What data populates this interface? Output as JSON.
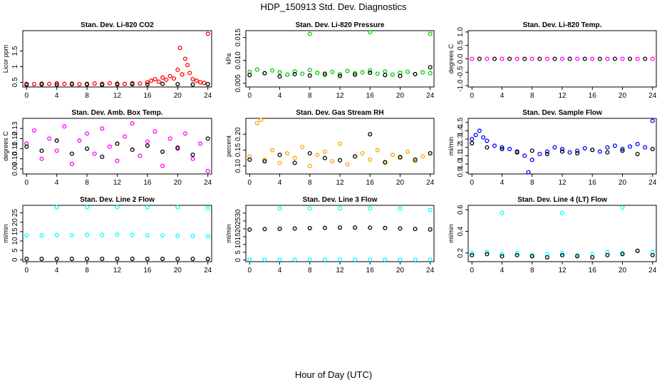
{
  "title": "HDP_150913  Std. Dev. Diagnostics",
  "xlabel": "Hour of Day (UTC)",
  "chart_data": [
    {
      "type": "scatter",
      "title": "Stan. Dev. Li-820 CO2",
      "ylabel": "Licor ppm",
      "xlim": [
        -0.5,
        24.5
      ],
      "ylim": [
        0.35,
        2.15
      ],
      "xticks": [
        0,
        4,
        8,
        12,
        16,
        20,
        24
      ],
      "yticks": [
        0.5,
        1.0,
        1.5
      ],
      "yticklabels": [
        "0.5",
        "1",
        "1.5"
      ],
      "series": [
        {
          "color": "#ff0000",
          "x": [
            0,
            1,
            2,
            3,
            4,
            5,
            6,
            7,
            8,
            9,
            10,
            11,
            12,
            13,
            14,
            15,
            16,
            16.5,
            17,
            17.5,
            18,
            18.5,
            19,
            19.5,
            20,
            20.3,
            20.6,
            21,
            21.3,
            21.6,
            22,
            22.5,
            23,
            23.5,
            24
          ],
          "y": [
            0.45,
            0.44,
            0.46,
            0.45,
            0.47,
            0.45,
            0.46,
            0.44,
            0.45,
            0.46,
            0.45,
            0.47,
            0.46,
            0.45,
            0.47,
            0.46,
            0.5,
            0.55,
            0.6,
            0.52,
            0.65,
            0.58,
            0.7,
            0.62,
            0.9,
            1.6,
            0.75,
            1.25,
            1.05,
            0.8,
            0.6,
            0.55,
            0.5,
            0.48,
            2.05
          ]
        },
        {
          "color": "#000000",
          "x": [
            0,
            2,
            4,
            6,
            8,
            10,
            12,
            14,
            16,
            18,
            20,
            22,
            24
          ],
          "y": [
            0.42,
            0.43,
            0.42,
            0.44,
            0.43,
            0.42,
            0.43,
            0.44,
            0.43,
            0.45,
            0.44,
            0.43,
            0.44
          ]
        }
      ]
    },
    {
      "type": "scatter",
      "title": "Stan. Dev. Li-820 Pressure",
      "ylabel": "kPa",
      "xlim": [
        -0.5,
        24.5
      ],
      "ylim": [
        0.0042,
        0.0165
      ],
      "xticks": [
        0,
        4,
        8,
        12,
        16,
        20,
        24
      ],
      "yticks": [
        0.005,
        0.01,
        0.015
      ],
      "yticklabels": [
        "0.005",
        "0.010",
        "0.015"
      ],
      "series": [
        {
          "color": "#00cc00",
          "x": [
            0,
            1,
            2,
            3,
            4,
            5,
            6,
            7,
            8,
            9,
            10,
            11,
            12,
            13,
            14,
            15,
            16,
            17,
            18,
            19,
            20,
            21,
            22,
            23,
            24,
            8,
            16,
            24
          ],
          "y": [
            0.0075,
            0.008,
            0.0072,
            0.0078,
            0.0074,
            0.0069,
            0.0076,
            0.0071,
            0.0079,
            0.0073,
            0.0068,
            0.0075,
            0.007,
            0.0077,
            0.0072,
            0.0074,
            0.0078,
            0.0071,
            0.0076,
            0.0069,
            0.0073,
            0.0075,
            0.007,
            0.0074,
            0.0072,
            0.0158,
            0.0162,
            0.0158
          ]
        },
        {
          "color": "#000000",
          "x": [
            0,
            2,
            4,
            6,
            8,
            10,
            12,
            14,
            16,
            18,
            20,
            22,
            24
          ],
          "y": [
            0.0068,
            0.0072,
            0.0065,
            0.007,
            0.0067,
            0.0071,
            0.0066,
            0.0069,
            0.0073,
            0.0068,
            0.0066,
            0.007,
            0.0085
          ]
        }
      ]
    },
    {
      "type": "scatter",
      "title": "Stan. Dev. Li-820 Temp.",
      "ylabel": "degrees C",
      "xlim": [
        -0.5,
        24.5
      ],
      "ylim": [
        -1.05,
        1.05
      ],
      "xticks": [
        0,
        4,
        8,
        12,
        16,
        20,
        24
      ],
      "yticks": [
        -1.0,
        -0.5,
        0.0,
        0.5,
        1.0
      ],
      "yticklabels": [
        "-1.0",
        "-0.5",
        "0.0",
        "0.5",
        "1.0"
      ],
      "series": [
        {
          "color": "#ff00ff",
          "x": [
            0,
            2,
            4,
            6,
            8,
            10,
            12,
            14,
            16,
            18,
            20,
            22,
            24
          ],
          "y": [
            0,
            0,
            0,
            0,
            0,
            0,
            0,
            0,
            0,
            0,
            0,
            0,
            0
          ]
        },
        {
          "color": "#000000",
          "x": [
            1,
            3,
            5,
            7,
            9,
            11,
            13,
            15,
            17,
            19,
            21,
            23
          ],
          "y": [
            0,
            0,
            0,
            0,
            0,
            0,
            0,
            0,
            0,
            0,
            0,
            0
          ]
        }
      ]
    },
    {
      "type": "scatter",
      "title": "Stan. Dev. Amb. Box Temp.",
      "ylabel": "degrees C",
      "xlim": [
        -0.5,
        24.5
      ],
      "ylim": [
        0.085,
        0.14
      ],
      "xticks": [
        0,
        4,
        8,
        12,
        16,
        20,
        24
      ],
      "yticks": [
        0.09,
        0.1,
        0.11,
        0.12,
        0.13
      ],
      "yticklabels": [
        "0.09",
        "0.10",
        "0.11",
        "0.12",
        "0.13"
      ],
      "series": [
        {
          "color": "#ff00ff",
          "x": [
            0,
            1,
            2,
            3,
            4,
            5,
            6,
            7,
            8,
            9,
            10,
            11,
            12,
            13,
            14,
            15,
            16,
            17,
            18,
            19,
            20,
            21,
            22,
            23,
            24
          ],
          "y": [
            0.115,
            0.128,
            0.1,
            0.12,
            0.108,
            0.132,
            0.095,
            0.118,
            0.125,
            0.105,
            0.13,
            0.112,
            0.098,
            0.122,
            0.135,
            0.103,
            0.117,
            0.127,
            0.093,
            0.12,
            0.11,
            0.125,
            0.1,
            0.115,
            0.088
          ]
        },
        {
          "color": "#000000",
          "x": [
            0,
            2,
            4,
            6,
            8,
            10,
            12,
            14,
            16,
            18,
            20,
            22,
            24
          ],
          "y": [
            0.112,
            0.108,
            0.118,
            0.105,
            0.11,
            0.102,
            0.115,
            0.109,
            0.113,
            0.107,
            0.111,
            0.104,
            0.12
          ]
        }
      ]
    },
    {
      "type": "scatter",
      "title": "Stan. Dev. Gas Stream RH",
      "ylabel": "percent",
      "xlim": [
        -0.5,
        24.5
      ],
      "ylim": [
        0.075,
        0.25
      ],
      "xticks": [
        0,
        4,
        8,
        12,
        16,
        20,
        24
      ],
      "yticks": [
        0.1,
        0.15,
        0.2
      ],
      "yticklabels": [
        "0.10",
        "0.15",
        "0.20"
      ],
      "series": [
        {
          "color": "#ffa500",
          "x": [
            0,
            1,
            1.5,
            2,
            3,
            4,
            5,
            6,
            7,
            8,
            9,
            10,
            11,
            12,
            13,
            14,
            15,
            16,
            17,
            18,
            19,
            20,
            21,
            22,
            23,
            24
          ],
          "y": [
            0.13,
            0.235,
            0.245,
            0.12,
            0.15,
            0.11,
            0.14,
            0.125,
            0.16,
            0.1,
            0.135,
            0.145,
            0.115,
            0.17,
            0.105,
            0.13,
            0.14,
            0.12,
            0.15,
            0.11,
            0.135,
            0.125,
            0.145,
            0.115,
            0.13,
            0.14
          ]
        },
        {
          "color": "#000000",
          "x": [
            0,
            2,
            4,
            6,
            8,
            10,
            12,
            14,
            16,
            18,
            20,
            22,
            24
          ],
          "y": [
            0.12,
            0.115,
            0.135,
            0.11,
            0.14,
            0.125,
            0.118,
            0.13,
            0.2,
            0.112,
            0.128,
            0.12,
            0.14
          ]
        }
      ]
    },
    {
      "type": "scatter",
      "title": "Stan. Dev. Sample Flow",
      "ylabel": "ml/min",
      "xlim": [
        -0.5,
        24.5
      ],
      "ylim": [
        0.88,
        1.55
      ],
      "xticks": [
        0,
        4,
        8,
        12,
        16,
        20,
        24
      ],
      "yticks": [
        0.9,
        1.0,
        1.1,
        1.2,
        1.3,
        1.4,
        1.5
      ],
      "yticklabels": [
        "0.9",
        "1.0",
        "1.1",
        "1.2",
        "1.3",
        "1.4",
        "1.5"
      ],
      "series": [
        {
          "color": "#0000ff",
          "x": [
            0,
            0.5,
            1,
            1.5,
            2,
            3,
            4,
            5,
            6,
            7,
            7.5,
            8,
            9,
            10,
            11,
            12,
            13,
            14,
            15,
            16,
            17,
            18,
            19,
            20,
            21,
            22,
            23,
            24
          ],
          "y": [
            1.3,
            1.35,
            1.4,
            1.32,
            1.28,
            1.22,
            1.2,
            1.18,
            1.15,
            1.1,
            0.9,
            1.05,
            1.12,
            1.15,
            1.2,
            1.18,
            1.14,
            1.16,
            1.19,
            1.17,
            1.15,
            1.2,
            1.22,
            1.18,
            1.21,
            1.24,
            1.2,
            1.52
          ]
        },
        {
          "color": "#000000",
          "x": [
            0,
            2,
            4,
            6,
            8,
            10,
            12,
            14,
            16,
            18,
            20,
            22,
            24
          ],
          "y": [
            1.25,
            1.2,
            1.18,
            1.14,
            1.16,
            1.12,
            1.15,
            1.13,
            1.17,
            1.14,
            1.16,
            1.12,
            1.18
          ]
        }
      ]
    },
    {
      "type": "scatter",
      "title": "Stan. Dev. Line 2 Flow",
      "ylabel": "ml/min",
      "xlim": [
        -0.5,
        24.5
      ],
      "ylim": [
        -1,
        29
      ],
      "xticks": [
        0,
        4,
        8,
        12,
        16,
        20,
        24
      ],
      "yticks": [
        0,
        5,
        10,
        15,
        20,
        25
      ],
      "yticklabels": [
        "0",
        "5",
        "10",
        "15",
        "20",
        "25"
      ],
      "series": [
        {
          "color": "#00ffff",
          "x": [
            0,
            2,
            4,
            6,
            8,
            10,
            12,
            14,
            16,
            18,
            20,
            22,
            24,
            4,
            8,
            12,
            16,
            20,
            24
          ],
          "y": [
            13,
            13,
            13.2,
            13.1,
            13.3,
            13.2,
            13.4,
            13.3,
            13.1,
            13,
            12.8,
            12.6,
            12.4,
            28,
            28,
            28,
            28,
            28,
            27.5
          ]
        },
        {
          "color": "#000000",
          "x": [
            0,
            2,
            4,
            6,
            8,
            10,
            12,
            14,
            16,
            18,
            20,
            22,
            24
          ],
          "y": [
            0.5,
            0.5,
            0.5,
            0.5,
            0.5,
            0.5,
            0.5,
            0.5,
            0.5,
            0.5,
            0.5,
            0.5,
            0.5
          ]
        }
      ]
    },
    {
      "type": "scatter",
      "title": "Stan. Dev. Line 3 Flow",
      "ylabel": "ml/min",
      "xlim": [
        -0.5,
        24.5
      ],
      "ylim": [
        -1,
        35
      ],
      "xticks": [
        0,
        4,
        8,
        12,
        16,
        20,
        24
      ],
      "yticks": [
        0,
        5,
        10,
        15,
        20,
        25,
        30
      ],
      "yticklabels": [
        "0",
        "5",
        "10",
        "15",
        "20",
        "25",
        "30"
      ],
      "series": [
        {
          "color": "#00ffff",
          "x": [
            0,
            2,
            4,
            6,
            8,
            10,
            12,
            14,
            16,
            18,
            20,
            22,
            24,
            4,
            8,
            12,
            16,
            20,
            24
          ],
          "y": [
            0.3,
            0.3,
            0.3,
            0.3,
            0.3,
            0.3,
            0.3,
            0.3,
            0.3,
            0.3,
            0.3,
            0.3,
            0.3,
            33,
            33,
            33,
            33,
            33,
            32
          ]
        },
        {
          "color": "#000000",
          "x": [
            0,
            2,
            4,
            6,
            8,
            10,
            12,
            14,
            16,
            18,
            20,
            22,
            24
          ],
          "y": [
            19.5,
            19.8,
            20,
            20.2,
            20.4,
            20.6,
            20.8,
            20.8,
            20.7,
            20.5,
            20.2,
            19.9,
            19.6
          ]
        }
      ]
    },
    {
      "type": "scatter",
      "title": "Stan. Dev. Line 4 (LT) Flow",
      "ylabel": "ml/min",
      "xlim": [
        -0.5,
        24.5
      ],
      "ylim": [
        0.12,
        0.64
      ],
      "xticks": [
        0,
        4,
        8,
        12,
        16,
        20,
        24
      ],
      "yticks": [
        0.2,
        0.4,
        0.6
      ],
      "yticklabels": [
        "0.2",
        "0.4",
        "0.6"
      ],
      "series": [
        {
          "color": "#00ffff",
          "x": [
            0,
            2,
            4,
            6,
            8,
            10,
            12,
            14,
            16,
            18,
            20,
            22,
            24,
            4,
            12,
            20
          ],
          "y": [
            0.2,
            0.21,
            0.19,
            0.2,
            0.18,
            0.19,
            0.2,
            0.18,
            0.19,
            0.21,
            0.2,
            0.22,
            0.21,
            0.57,
            0.57,
            0.62
          ]
        },
        {
          "color": "#000000",
          "x": [
            0,
            2,
            4,
            6,
            8,
            10,
            12,
            14,
            16,
            18,
            20,
            22,
            24
          ],
          "y": [
            0.18,
            0.19,
            0.17,
            0.18,
            0.17,
            0.16,
            0.18,
            0.17,
            0.16,
            0.18,
            0.19,
            0.22,
            0.18
          ]
        }
      ]
    }
  ]
}
